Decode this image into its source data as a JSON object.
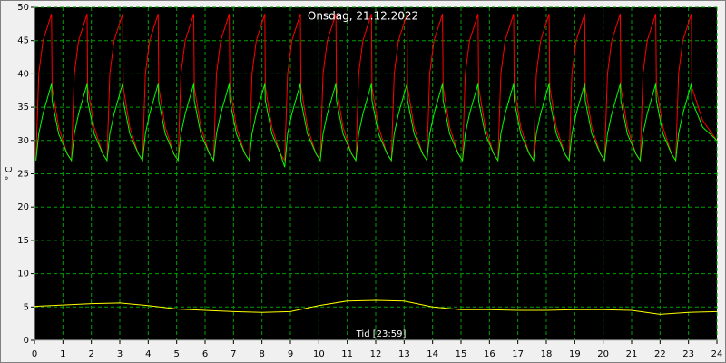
{
  "chart_data": {
    "type": "line",
    "title": "Onsdag, 21.12.2022",
    "xlabel": "Tid [23:59]",
    "ylabel": "° C",
    "xlim": [
      0,
      24
    ],
    "xticks": [
      0,
      1,
      2,
      3,
      4,
      5,
      6,
      7,
      8,
      9,
      10,
      11,
      12,
      13,
      14,
      15,
      16,
      17,
      18,
      19,
      20,
      21,
      22,
      23,
      24
    ],
    "ylim": [
      0,
      50
    ],
    "yticks": [
      0,
      5,
      10,
      15,
      20,
      25,
      30,
      35,
      40,
      45,
      50
    ],
    "grid": true,
    "x": [
      0.05,
      0.15,
      0.3,
      0.6,
      0.62,
      0.85,
      1.15,
      1.3,
      1.4,
      1.55,
      1.85,
      1.87,
      2.1,
      2.4,
      2.55,
      2.65,
      2.8,
      3.1,
      3.12,
      3.35,
      3.65,
      3.8,
      3.9,
      4.05,
      4.35,
      4.37,
      4.6,
      4.9,
      5.05,
      5.15,
      5.3,
      5.6,
      5.62,
      5.85,
      6.15,
      6.3,
      6.4,
      6.55,
      6.85,
      6.87,
      7.1,
      7.4,
      7.55,
      7.65,
      7.8,
      8.1,
      8.12,
      8.35,
      8.65,
      8.8,
      8.9,
      9.05,
      9.35,
      9.37,
      9.6,
      9.9,
      10.05,
      10.15,
      10.3,
      10.6,
      10.62,
      10.85,
      11.15,
      11.3,
      11.4,
      11.55,
      11.85,
      11.87,
      12.1,
      12.4,
      12.55,
      12.65,
      12.8,
      13.1,
      13.12,
      13.35,
      13.65,
      13.8,
      13.9,
      14.05,
      14.35,
      14.37,
      14.6,
      14.9,
      15.05,
      15.15,
      15.3,
      15.6,
      15.62,
      15.85,
      16.15,
      16.3,
      16.4,
      16.55,
      16.85,
      16.87,
      17.1,
      17.4,
      17.55,
      17.65,
      17.8,
      18.1,
      18.12,
      18.35,
      18.65,
      18.8,
      18.9,
      19.05,
      19.35,
      19.37,
      19.6,
      19.9,
      20.05,
      20.15,
      20.3,
      20.6,
      20.62,
      20.85,
      21.15,
      21.3,
      21.4,
      21.55,
      21.85,
      21.87,
      22.1,
      22.4,
      22.55,
      22.65,
      22.8,
      23.1,
      23.12,
      23.5,
      24
    ],
    "series": [
      {
        "color": "#ff0000",
        "values": [
          27,
          40,
          45,
          49,
          38,
          32,
          28,
          27,
          40,
          45,
          49,
          38,
          32,
          28,
          27,
          40,
          45,
          49,
          38,
          32,
          28,
          27,
          40,
          45,
          49,
          38,
          32,
          28,
          27,
          40,
          45,
          49,
          38,
          32,
          28,
          27,
          40,
          45,
          49,
          38,
          32,
          28,
          27,
          40,
          45,
          49,
          38,
          32,
          28,
          27,
          40,
          45,
          49,
          38,
          32,
          28,
          27,
          40,
          45,
          49,
          38,
          32,
          28,
          27,
          40,
          45,
          49,
          38,
          32,
          28,
          27,
          40,
          45,
          49,
          38,
          32,
          28,
          27,
          40,
          45,
          49,
          38,
          32,
          28,
          27,
          40,
          45,
          49,
          38,
          32,
          28,
          27,
          40,
          45,
          49,
          38,
          32,
          28,
          27,
          40,
          45,
          49,
          38,
          32,
          28,
          27,
          40,
          45,
          49,
          38,
          32,
          28,
          27,
          40,
          45,
          49,
          38,
          32,
          28,
          27,
          40,
          45,
          49,
          38,
          32,
          28,
          27,
          40,
          45,
          49,
          38,
          33,
          30
        ]
      },
      {
        "color": "#00ff00",
        "values": [
          27,
          31,
          34,
          38.5,
          36,
          31,
          28,
          27,
          31,
          34,
          38.5,
          36,
          31,
          28,
          27,
          31,
          34,
          38.5,
          36,
          31,
          28,
          27,
          31,
          34,
          38.5,
          36,
          31,
          28,
          27,
          31,
          34,
          38.5,
          36,
          31,
          28,
          27,
          31,
          34,
          38.5,
          36,
          31,
          28,
          27,
          31,
          34,
          38.5,
          36,
          31,
          28,
          26,
          31,
          34,
          38.5,
          36,
          31,
          28,
          27,
          31,
          34,
          38.5,
          36,
          31,
          28,
          27,
          31,
          34,
          38.5,
          36,
          31,
          28,
          27,
          31,
          34,
          38.5,
          36,
          31,
          28,
          27,
          31,
          34,
          38.5,
          36,
          31,
          28,
          27,
          31,
          34,
          38.5,
          36,
          31,
          28,
          27,
          31,
          34,
          38.5,
          36,
          31,
          28,
          27,
          31,
          34,
          38.5,
          36,
          31,
          28,
          27,
          31,
          34,
          38.5,
          36,
          31,
          28,
          27,
          31,
          34,
          38.5,
          36,
          31,
          28,
          27,
          31,
          34,
          38.5,
          36,
          31,
          28,
          27,
          31,
          34,
          38.5,
          36,
          32,
          30
        ]
      },
      {
        "color": "#ffff00",
        "x": [
          0,
          1,
          2,
          3,
          4,
          5,
          6,
          7,
          8,
          9,
          10,
          11,
          12,
          13,
          14,
          15,
          16,
          17,
          18,
          19,
          20,
          21,
          22,
          23,
          24
        ],
        "values": [
          5.1,
          5.3,
          5.5,
          5.6,
          5.2,
          4.7,
          4.5,
          4.3,
          4.2,
          4.3,
          5.2,
          5.9,
          6.0,
          5.9,
          5.0,
          4.6,
          4.6,
          4.5,
          4.5,
          4.6,
          4.6,
          4.5,
          3.9,
          4.2,
          4.3
        ]
      }
    ]
  }
}
